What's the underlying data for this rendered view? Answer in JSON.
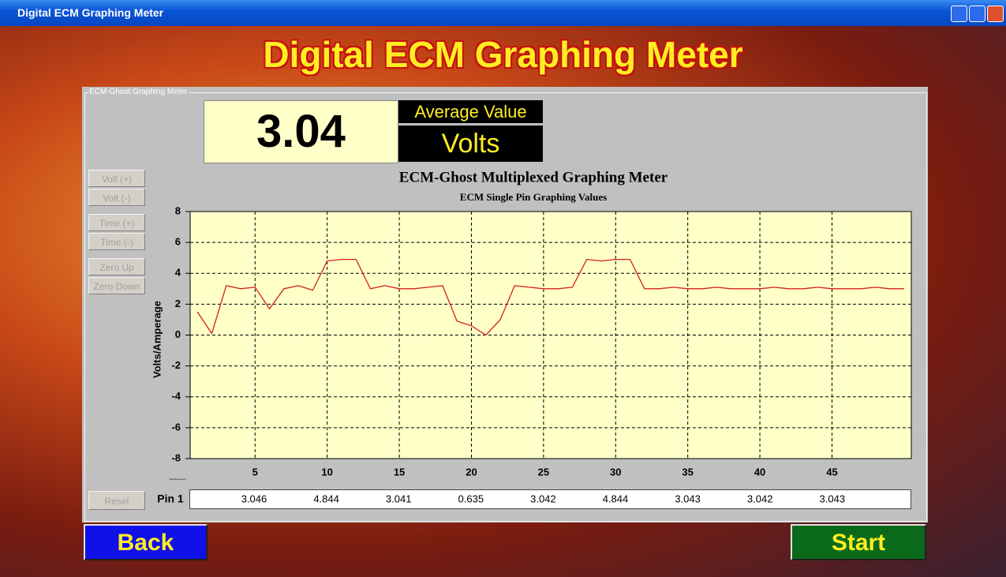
{
  "window": {
    "title": "Digital ECM Graphing Meter"
  },
  "header": {
    "title": "Digital ECM Graphing Meter"
  },
  "panel": {
    "label": "ECM-Ghost Graphing Meter"
  },
  "display": {
    "value": "3.04",
    "label": "Average Value",
    "unit": "Volts"
  },
  "buttons": {
    "side": [
      "Volt (+)",
      "Volt (-)",
      "Time (+)",
      "Time (-)",
      "Zero Up",
      "Zero Down"
    ],
    "reset": "Reset",
    "back": "Back",
    "start": "Start"
  },
  "chart_data": {
    "type": "line",
    "title": "ECM-Ghost Multiplexed Graphing Meter",
    "subtitle": "ECM Single Pin Graphing Values",
    "y_label": "Volts/Amperage",
    "x_label": "Time/Frequency",
    "x": [
      1,
      2,
      3,
      4,
      5,
      6,
      7,
      8,
      9,
      10,
      11,
      12,
      13,
      14,
      15,
      16,
      17,
      18,
      19,
      20,
      21,
      22,
      23,
      24,
      25,
      26,
      27,
      28,
      29,
      30,
      31,
      32,
      33,
      34,
      35,
      36,
      37,
      38,
      39,
      40,
      41,
      42,
      43,
      44,
      45,
      46,
      47,
      48,
      49,
      50
    ],
    "series": [
      {
        "color": "#d42020",
        "values": [
          1.5,
          0.1,
          3.2,
          3.0,
          3.1,
          1.7,
          3.0,
          3.2,
          2.9,
          4.8,
          4.9,
          4.9,
          3.0,
          3.2,
          3.0,
          3.0,
          3.1,
          3.2,
          0.9,
          0.6,
          0.0,
          1.0,
          3.2,
          3.1,
          3.0,
          3.0,
          3.1,
          4.9,
          4.8,
          4.9,
          4.9,
          3.0,
          3.0,
          3.1,
          3.0,
          3.0,
          3.1,
          3.0,
          3.0,
          3.0,
          3.1,
          3.0,
          3.0,
          3.1,
          3.0,
          3.0,
          3.0,
          3.1,
          3.0,
          3.0
        ]
      }
    ],
    "xlim": [
      0.5,
      50.5
    ],
    "xticks": [
      5,
      10,
      15,
      20,
      25,
      30,
      35,
      40,
      45
    ],
    "ylim": [
      -8,
      8
    ],
    "yticks": [
      -8,
      -6,
      -4,
      -2,
      0,
      2,
      4,
      6,
      8
    ],
    "grid": true
  },
  "pin_row": {
    "label": "Pin 1",
    "values": [
      "3.046",
      "4.844",
      "3.041",
      "0.635",
      "3.042",
      "4.844",
      "3.043",
      "3.042",
      "3.043"
    ]
  }
}
